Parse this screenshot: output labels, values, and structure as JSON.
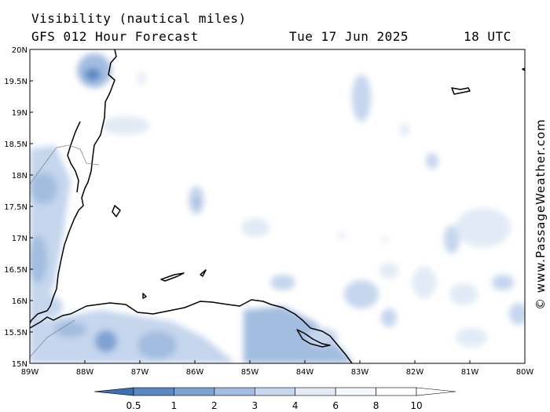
{
  "header": {
    "title": "Visibility (nautical miles)",
    "subtitle": "GFS 012 Hour Forecast",
    "date": "Tue 17 Jun 2025",
    "time": "18 UTC"
  },
  "credit": "© www.PassageWeather.com",
  "axes": {
    "lat_labels": [
      "20N",
      "19.5N",
      "19N",
      "18.5N",
      "18N",
      "17.5N",
      "17N",
      "16.5N",
      "16N",
      "15.5N",
      "15N"
    ],
    "lon_labels": [
      "89W",
      "88W",
      "87W",
      "86W",
      "85W",
      "84W",
      "83W",
      "82W",
      "81W",
      "80W"
    ]
  },
  "legend": {
    "labels": [
      "0.5",
      "1",
      "2",
      "3",
      "4",
      "6",
      "8",
      "10"
    ],
    "colors": [
      "#3d6fb3",
      "#5a88c4",
      "#7ea2d2",
      "#a3bde0",
      "#c5d6ed",
      "#e1eaf6",
      "#f4f7fc",
      "#ffffff",
      "#ffffff"
    ]
  },
  "colors": {
    "coast": "#000000",
    "visibility_low": "#7ea2d2",
    "visibility_mid": "#c5d6ed",
    "visibility_high": "#e1eaf6"
  }
}
